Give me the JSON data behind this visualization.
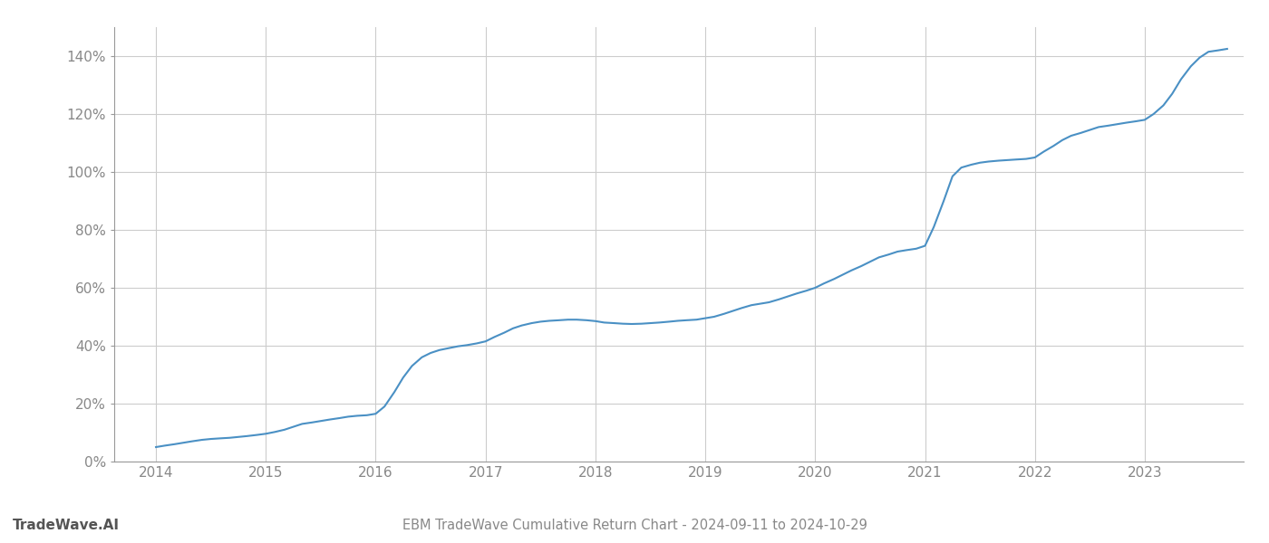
{
  "title": "EBM TradeWave Cumulative Return Chart - 2024-09-11 to 2024-10-29",
  "watermark": "TradeWave.AI",
  "line_color": "#4a90c4",
  "background_color": "#ffffff",
  "grid_color": "#cccccc",
  "spine_color": "#999999",
  "x_years": [
    2014,
    2015,
    2016,
    2017,
    2018,
    2019,
    2020,
    2021,
    2022,
    2023
  ],
  "x_data": [
    2014.0,
    2014.08,
    2014.17,
    2014.25,
    2014.33,
    2014.42,
    2014.5,
    2014.58,
    2014.67,
    2014.75,
    2014.83,
    2014.92,
    2015.0,
    2015.08,
    2015.17,
    2015.25,
    2015.33,
    2015.42,
    2015.5,
    2015.58,
    2015.67,
    2015.75,
    2015.83,
    2015.92,
    2016.0,
    2016.08,
    2016.17,
    2016.25,
    2016.33,
    2016.42,
    2016.5,
    2016.58,
    2016.67,
    2016.75,
    2016.83,
    2016.92,
    2017.0,
    2017.08,
    2017.17,
    2017.25,
    2017.33,
    2017.42,
    2017.5,
    2017.58,
    2017.67,
    2017.75,
    2017.83,
    2017.92,
    2018.0,
    2018.08,
    2018.17,
    2018.25,
    2018.33,
    2018.42,
    2018.5,
    2018.58,
    2018.67,
    2018.75,
    2018.83,
    2018.92,
    2019.0,
    2019.08,
    2019.17,
    2019.25,
    2019.33,
    2019.42,
    2019.5,
    2019.58,
    2019.67,
    2019.75,
    2019.83,
    2019.92,
    2020.0,
    2020.08,
    2020.17,
    2020.25,
    2020.33,
    2020.42,
    2020.5,
    2020.58,
    2020.67,
    2020.75,
    2020.83,
    2020.92,
    2021.0,
    2021.08,
    2021.17,
    2021.25,
    2021.33,
    2021.42,
    2021.5,
    2021.58,
    2021.67,
    2021.75,
    2021.83,
    2021.92,
    2022.0,
    2022.08,
    2022.17,
    2022.25,
    2022.33,
    2022.42,
    2022.5,
    2022.58,
    2022.67,
    2022.75,
    2022.83,
    2022.92,
    2023.0,
    2023.08,
    2023.17,
    2023.25,
    2023.33,
    2023.42,
    2023.5,
    2023.58,
    2023.67,
    2023.75
  ],
  "y_data": [
    5.0,
    5.5,
    6.0,
    6.5,
    7.0,
    7.5,
    7.8,
    8.0,
    8.2,
    8.5,
    8.8,
    9.2,
    9.6,
    10.2,
    11.0,
    12.0,
    13.0,
    13.5,
    14.0,
    14.5,
    15.0,
    15.5,
    15.8,
    16.0,
    16.5,
    19.0,
    24.0,
    29.0,
    33.0,
    36.0,
    37.5,
    38.5,
    39.2,
    39.8,
    40.2,
    40.8,
    41.5,
    43.0,
    44.5,
    46.0,
    47.0,
    47.8,
    48.3,
    48.6,
    48.8,
    49.0,
    49.0,
    48.8,
    48.5,
    48.0,
    47.8,
    47.6,
    47.5,
    47.6,
    47.8,
    48.0,
    48.3,
    48.6,
    48.8,
    49.0,
    49.5,
    50.0,
    51.0,
    52.0,
    53.0,
    54.0,
    54.5,
    55.0,
    56.0,
    57.0,
    58.0,
    59.0,
    60.0,
    61.5,
    63.0,
    64.5,
    66.0,
    67.5,
    69.0,
    70.5,
    71.5,
    72.5,
    73.0,
    73.5,
    74.5,
    81.0,
    90.0,
    98.5,
    101.5,
    102.5,
    103.2,
    103.6,
    103.9,
    104.1,
    104.3,
    104.5,
    105.0,
    107.0,
    109.0,
    111.0,
    112.5,
    113.5,
    114.5,
    115.5,
    116.0,
    116.5,
    117.0,
    117.5,
    118.0,
    120.0,
    123.0,
    127.0,
    132.0,
    136.5,
    139.5,
    141.5,
    142.0,
    142.5
  ],
  "ylim": [
    0,
    150
  ],
  "yticks": [
    0,
    20,
    40,
    60,
    80,
    100,
    120,
    140
  ],
  "xlim": [
    2013.62,
    2023.9
  ],
  "title_fontsize": 10.5,
  "watermark_fontsize": 11,
  "tick_fontsize": 11,
  "axis_label_color": "#888888",
  "watermark_color": "#555555"
}
